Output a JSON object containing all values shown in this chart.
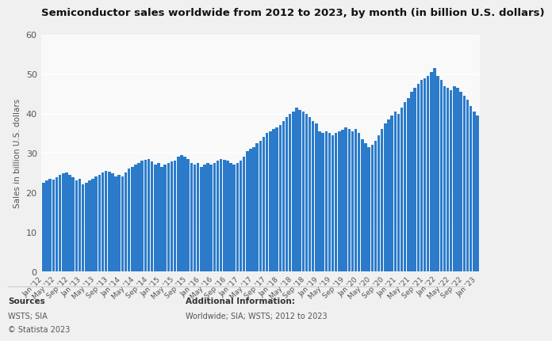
{
  "title": "Semiconductor sales worldwide from 2012 to 2023, by month (in billion U.S. dollars)",
  "ylabel": "Sales in billion U.S. dollars",
  "bar_color": "#2b7bca",
  "background_color": "#f0f0f0",
  "plot_background": "#f9f9f9",
  "ylim": [
    0,
    60
  ],
  "footer_sources_label": "Sources",
  "footer_additional_label": "Additional Information:",
  "footer_additional": "Worldwide; SIA; WSTS; 2012 to 2023",
  "tick_labels": [
    "Jan '12",
    "May '12",
    "Sep '12",
    "Jan '13",
    "May '13",
    "Sep '13",
    "Jan '14",
    "May '14",
    "Sep '14",
    "Jan '15",
    "May '15",
    "Sep '15",
    "Jan '16",
    "May '16",
    "Sep '16",
    "Jan '17",
    "May '17",
    "Sep '17",
    "Jan '18",
    "May '18",
    "Sep '18",
    "Jan '19",
    "May '19",
    "Sep '19",
    "Jan '20",
    "May '20",
    "Sep '20",
    "Jan '21",
    "May '21",
    "Sep '21",
    "Jan '22",
    "May '22",
    "Sep '22",
    "Jan '23"
  ],
  "values": [
    22.5,
    23.0,
    23.5,
    23.2,
    23.8,
    24.5,
    24.8,
    25.0,
    24.5,
    23.8,
    23.0,
    23.5,
    22.0,
    22.5,
    23.0,
    23.5,
    24.0,
    24.5,
    25.0,
    25.5,
    25.2,
    24.8,
    24.0,
    24.5,
    24.0,
    25.0,
    26.0,
    26.5,
    27.0,
    27.5,
    28.0,
    28.2,
    28.5,
    27.8,
    27.0,
    27.5,
    26.5,
    27.0,
    27.5,
    27.8,
    28.0,
    29.0,
    29.5,
    29.0,
    28.5,
    27.5,
    27.0,
    27.5,
    26.5,
    27.0,
    27.5,
    27.0,
    27.5,
    28.0,
    28.5,
    28.2,
    28.0,
    27.5,
    27.0,
    27.5,
    28.0,
    29.0,
    30.5,
    31.0,
    31.5,
    32.5,
    33.0,
    34.0,
    35.0,
    35.5,
    36.0,
    36.5,
    37.0,
    38.0,
    39.0,
    40.0,
    40.5,
    41.5,
    41.0,
    40.5,
    40.0,
    39.0,
    38.0,
    37.5,
    35.5,
    35.0,
    35.5,
    35.0,
    34.5,
    35.0,
    35.5,
    35.8,
    36.5,
    36.0,
    35.5,
    36.0,
    35.0,
    33.5,
    32.5,
    31.5,
    32.0,
    33.0,
    34.5,
    36.0,
    37.5,
    38.5,
    39.5,
    40.5,
    40.0,
    41.5,
    43.0,
    44.0,
    45.5,
    46.5,
    47.5,
    48.5,
    49.0,
    49.5,
    50.5,
    51.5,
    49.5,
    48.5,
    47.0,
    46.5,
    46.0,
    47.0,
    46.5,
    45.5,
    44.5,
    43.5,
    42.0,
    40.5,
    39.5
  ]
}
